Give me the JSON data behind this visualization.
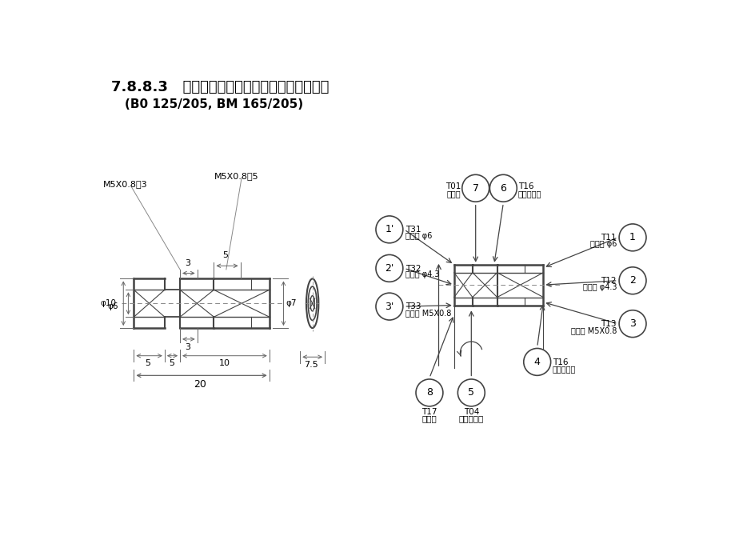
{
  "title1": "7.8.8.3   正面内削・背面内削・車削・横向加工",
  "title2": "(B0 125/205, BM 165/205)",
  "bg_color": "#ffffff",
  "lc": "#444444",
  "tc": "#000000",
  "dim_color": "#666666",
  "annot_left_1": "M5X0.8深3",
  "annot_left_2": "M5X0.8深5",
  "phi10": "φ10",
  "phi6": "φ6",
  "phi7": "φ7",
  "circles_left": [
    {
      "label": "1'",
      "tnum": "T31",
      "tdesc": "センタ φ6"
    },
    {
      "label": "2'",
      "tnum": "T32",
      "tdesc": "ドリル φ4.3"
    },
    {
      "label": "3'",
      "tnum": "T33",
      "tdesc": "タップ M5X0.8"
    }
  ],
  "circles_top": [
    {
      "label": "7",
      "tnum": "T01",
      "tdesc": "後抴き"
    },
    {
      "label": "6",
      "tnum": "T16",
      "tdesc": "かえり除等"
    }
  ],
  "circles_bottom": [
    {
      "label": "8",
      "tnum": "T17",
      "tdesc": "突切り"
    },
    {
      "label": "5",
      "tnum": "T04",
      "tdesc": "エンドミル"
    }
  ],
  "circles_right_mid": [
    {
      "label": "4",
      "tnum": "T16",
      "tdesc": "ターニング"
    }
  ],
  "circles_right": [
    {
      "label": "1",
      "tnum": "T11",
      "tdesc": "センタ φ6"
    },
    {
      "label": "2",
      "tnum": "T12",
      "tdesc": "ドリル φ4.3"
    },
    {
      "label": "3",
      "tnum": "T13",
      "tdesc": "タップ M5X0.8"
    }
  ]
}
